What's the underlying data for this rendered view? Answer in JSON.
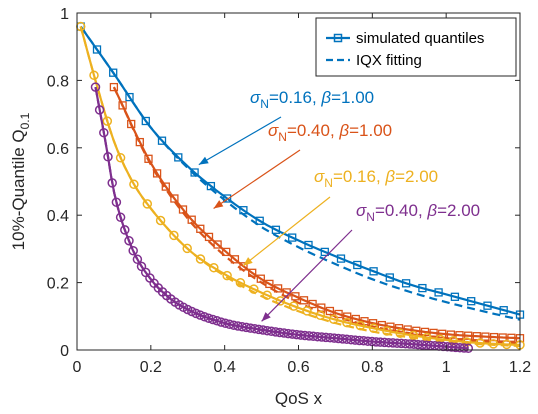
{
  "chart_data": {
    "type": "line",
    "xlabel": "QoS x",
    "ylabel": {
      "main": "10%-Quantile Q",
      "sub": "0.1"
    },
    "xlim": [
      0,
      1.2
    ],
    "ylim": [
      0,
      1
    ],
    "x_ticks": [
      {
        "v": 0,
        "label": "0"
      },
      {
        "v": 0.2,
        "label": "0.2"
      },
      {
        "v": 0.4,
        "label": "0.4"
      },
      {
        "v": 0.6,
        "label": "0.6"
      },
      {
        "v": 0.8,
        "label": "0.8"
      },
      {
        "v": 1.0,
        "label": "1"
      },
      {
        "v": 1.2,
        "label": "1.2"
      }
    ],
    "y_ticks": [
      {
        "v": 0,
        "label": "0"
      },
      {
        "v": 0.2,
        "label": "0.2"
      },
      {
        "v": 0.4,
        "label": "0.4"
      },
      {
        "v": 0.6,
        "label": "0.6"
      },
      {
        "v": 0.8,
        "label": "0.8"
      },
      {
        "v": 1,
        "label": "1"
      }
    ],
    "grid": false,
    "legend": {
      "placement": "top-right",
      "entries": [
        {
          "label": "simulated quantiles",
          "style": "solid-square-marker"
        },
        {
          "label": "IQX fitting",
          "style": "dashed"
        }
      ]
    },
    "series": [
      {
        "color": "#0072bd",
        "marker": "square",
        "annotation": {
          "sigma": "0.16",
          "beta": "1.00",
          "target": [
            0.33,
            0.55
          ]
        },
        "simulated": {
          "x": [
            0.01,
            0.1,
            0.2,
            0.3,
            0.4,
            0.5,
            0.6,
            0.7,
            0.8,
            0.9,
            1.0,
            1.1,
            1.2
          ],
          "y": [
            0.96,
            0.82,
            0.66,
            0.545,
            0.455,
            0.38,
            0.325,
            0.278,
            0.235,
            0.195,
            0.165,
            0.135,
            0.105
          ]
        },
        "fit": {
          "x": [
            0.01,
            0.1,
            0.2,
            0.3,
            0.4,
            0.5,
            0.6,
            0.7,
            0.8,
            0.9,
            1.0,
            1.1,
            1.2
          ],
          "y": [
            0.96,
            0.82,
            0.66,
            0.54,
            0.445,
            0.365,
            0.305,
            0.255,
            0.21,
            0.173,
            0.142,
            0.115,
            0.09
          ]
        }
      },
      {
        "color": "#d95319",
        "marker": "square",
        "annotation": {
          "sigma": "0.40",
          "beta": "1.00",
          "target": [
            0.37,
            0.42
          ]
        },
        "simulated": {
          "x": [
            0.1,
            0.2,
            0.3,
            0.4,
            0.5,
            0.6,
            0.7,
            0.8,
            0.9,
            1.0,
            1.1,
            1.2
          ],
          "y": [
            0.78,
            0.555,
            0.4,
            0.295,
            0.21,
            0.155,
            0.11,
            0.08,
            0.06,
            0.047,
            0.04,
            0.035
          ]
        },
        "fit": {
          "x": [
            0.1,
            0.2,
            0.3,
            0.4,
            0.5,
            0.6,
            0.7,
            0.8,
            0.9,
            1.0,
            1.1,
            1.2
          ],
          "y": [
            0.78,
            0.55,
            0.39,
            0.28,
            0.2,
            0.14,
            0.1,
            0.07,
            0.05,
            0.035,
            0.026,
            0.02
          ]
        }
      },
      {
        "color": "#edb120",
        "marker": "circle",
        "annotation": {
          "sigma": "0.16",
          "beta": "2.00",
          "target": [
            0.45,
            0.25
          ]
        },
        "simulated": {
          "x": [
            0.01,
            0.05,
            0.1,
            0.15,
            0.2,
            0.3,
            0.4,
            0.5,
            0.6,
            0.7,
            0.8,
            0.9,
            1.0,
            1.1,
            1.2
          ],
          "y": [
            0.96,
            0.8,
            0.62,
            0.5,
            0.42,
            0.3,
            0.225,
            0.17,
            0.125,
            0.09,
            0.065,
            0.045,
            0.03,
            0.02,
            0.015
          ]
        },
        "fit": {
          "x": [
            0.01,
            0.05,
            0.1,
            0.15,
            0.2,
            0.3,
            0.4,
            0.5,
            0.6,
            0.7,
            0.8,
            0.9,
            1.0,
            1.1,
            1.2
          ],
          "y": [
            0.96,
            0.8,
            0.62,
            0.5,
            0.42,
            0.3,
            0.22,
            0.16,
            0.115,
            0.08,
            0.055,
            0.038,
            0.025,
            0.017,
            0.012
          ]
        }
      },
      {
        "color": "#7e2f8e",
        "marker": "circle",
        "annotation": {
          "sigma": "0.40",
          "beta": "2.00",
          "target": [
            0.5,
            0.085
          ]
        },
        "simulated": {
          "x": [
            0.05,
            0.08,
            0.1,
            0.15,
            0.2,
            0.25,
            0.3,
            0.4,
            0.5,
            0.6,
            0.7,
            0.8,
            0.9,
            1.0,
            1.06
          ],
          "y": [
            0.78,
            0.6,
            0.47,
            0.3,
            0.21,
            0.155,
            0.12,
            0.08,
            0.06,
            0.045,
            0.035,
            0.025,
            0.018,
            0.01,
            0.005
          ]
        },
        "fit": {
          "x": [
            0.05,
            0.08,
            0.1,
            0.15,
            0.2,
            0.25,
            0.3,
            0.4,
            0.5,
            0.6,
            0.7,
            0.8,
            0.9,
            1.0,
            1.06
          ],
          "y": [
            0.78,
            0.6,
            0.47,
            0.3,
            0.21,
            0.155,
            0.12,
            0.08,
            0.06,
            0.045,
            0.035,
            0.025,
            0.018,
            0.01,
            0.005
          ]
        }
      }
    ]
  }
}
